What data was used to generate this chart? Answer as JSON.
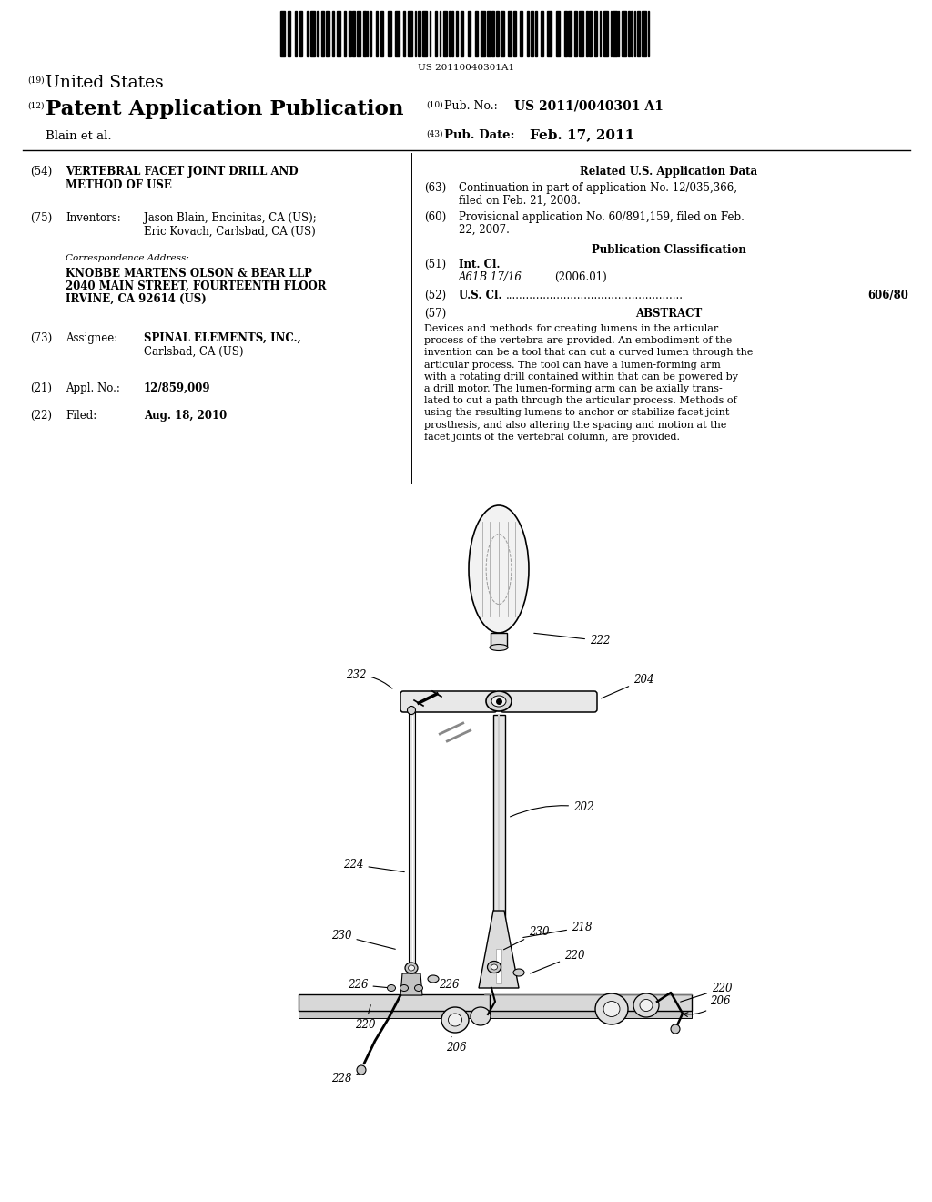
{
  "bg": "#ffffff",
  "barcode_text": "US 20110040301A1",
  "h19_sup": "(19)",
  "h19_text": "United States",
  "h12_sup": "(12)",
  "h12_text": "Patent Application Publication",
  "pub_num_sup": "(10)",
  "pub_num_label": "Pub. No.:",
  "pub_num_val": "US 2011/0040301 A1",
  "author": "Blain et al.",
  "pub_date_sup": "(43)",
  "pub_date_label": "Pub. Date:",
  "pub_date_val": "Feb. 17, 2011",
  "f54_num": "(54)",
  "f54_val": "VERTEBRAL FACET JOINT DRILL AND\nMETHOD OF USE",
  "f75_num": "(75)",
  "f75_label": "Inventors:",
  "f75_name1": "Jason Blain, Encinitas, CA (US);",
  "f75_name2": "Eric Kovach, Carlsbad, CA (US)",
  "corr_italic": "Correspondence Address:",
  "corr_bold1": "KNOBBE MARTENS OLSON & BEAR LLP",
  "corr_bold2": "2040 MAIN STREET, FOURTEENTH FLOOR",
  "corr_bold3": "IRVINE, CA 92614 (US)",
  "f73_num": "(73)",
  "f73_label": "Assignee:",
  "f73_bold1": "SPINAL ELEMENTS, INC.,",
  "f73_val2": "Carlsbad, CA (US)",
  "f21_num": "(21)",
  "f21_label": "Appl. No.:",
  "f21_val": "12/859,009",
  "f22_num": "(22)",
  "f22_label": "Filed:",
  "f22_val": "Aug. 18, 2010",
  "related_hdr": "Related U.S. Application Data",
  "f63_num": "(63)",
  "f63_val1": "Continuation-in-part of application No. 12/035,366,",
  "f63_val2": "filed on Feb. 21, 2008.",
  "f60_num": "(60)",
  "f60_val1": "Provisional application No. 60/891,159, filed on Feb.",
  "f60_val2": "22, 2007.",
  "pub_class_hdr": "Publication Classification",
  "f51_num": "(51)",
  "f51_label": "Int. Cl.",
  "f51_italic": "A61B 17/16",
  "f51_year": "(2006.01)",
  "f52_num": "(52)",
  "f52_label": "U.S. Cl.",
  "f52_val": "606/80",
  "f57_num": "(57)",
  "f57_label": "ABSTRACT",
  "abstract_lines": [
    "Devices and methods for creating lumens in the articular",
    "process of the vertebra are provided. An embodiment of the",
    "invention can be a tool that can cut a curved lumen through the",
    "articular process. The tool can have a lumen-forming arm",
    "with a rotating drill contained within that can be powered by",
    "a drill motor. The lumen-forming arm can be axially trans-",
    "lated to cut a path through the articular process. Methods of",
    "using the resulting lumens to anchor or stabilize facet joint",
    "prosthesis, and also altering the spacing and motion at the",
    "facet joints of the vertebral column, are provided."
  ]
}
